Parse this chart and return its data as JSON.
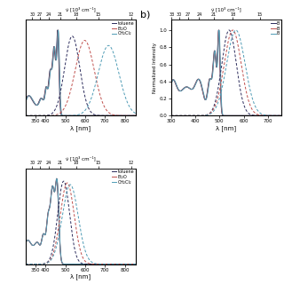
{
  "legend_labels_a": [
    "toluene",
    "Et₂O",
    "CH₂Cl₂"
  ],
  "legend_labels_b": [
    "B",
    "B",
    "B"
  ],
  "colors": [
    "#2b2b5c",
    "#c0504d",
    "#4e9bb5"
  ],
  "xlabel": "λ [nm]",
  "ylabel_b": "Normalized Intensity",
  "top_axis_label": "ν̃ [10³ cm⁻¹]",
  "top_ticks_a": [
    30,
    27,
    24,
    21,
    18,
    15,
    12
  ],
  "top_ticks_b": [
    33,
    30,
    27,
    24,
    21,
    18,
    15
  ],
  "panel_b_label": "b)"
}
